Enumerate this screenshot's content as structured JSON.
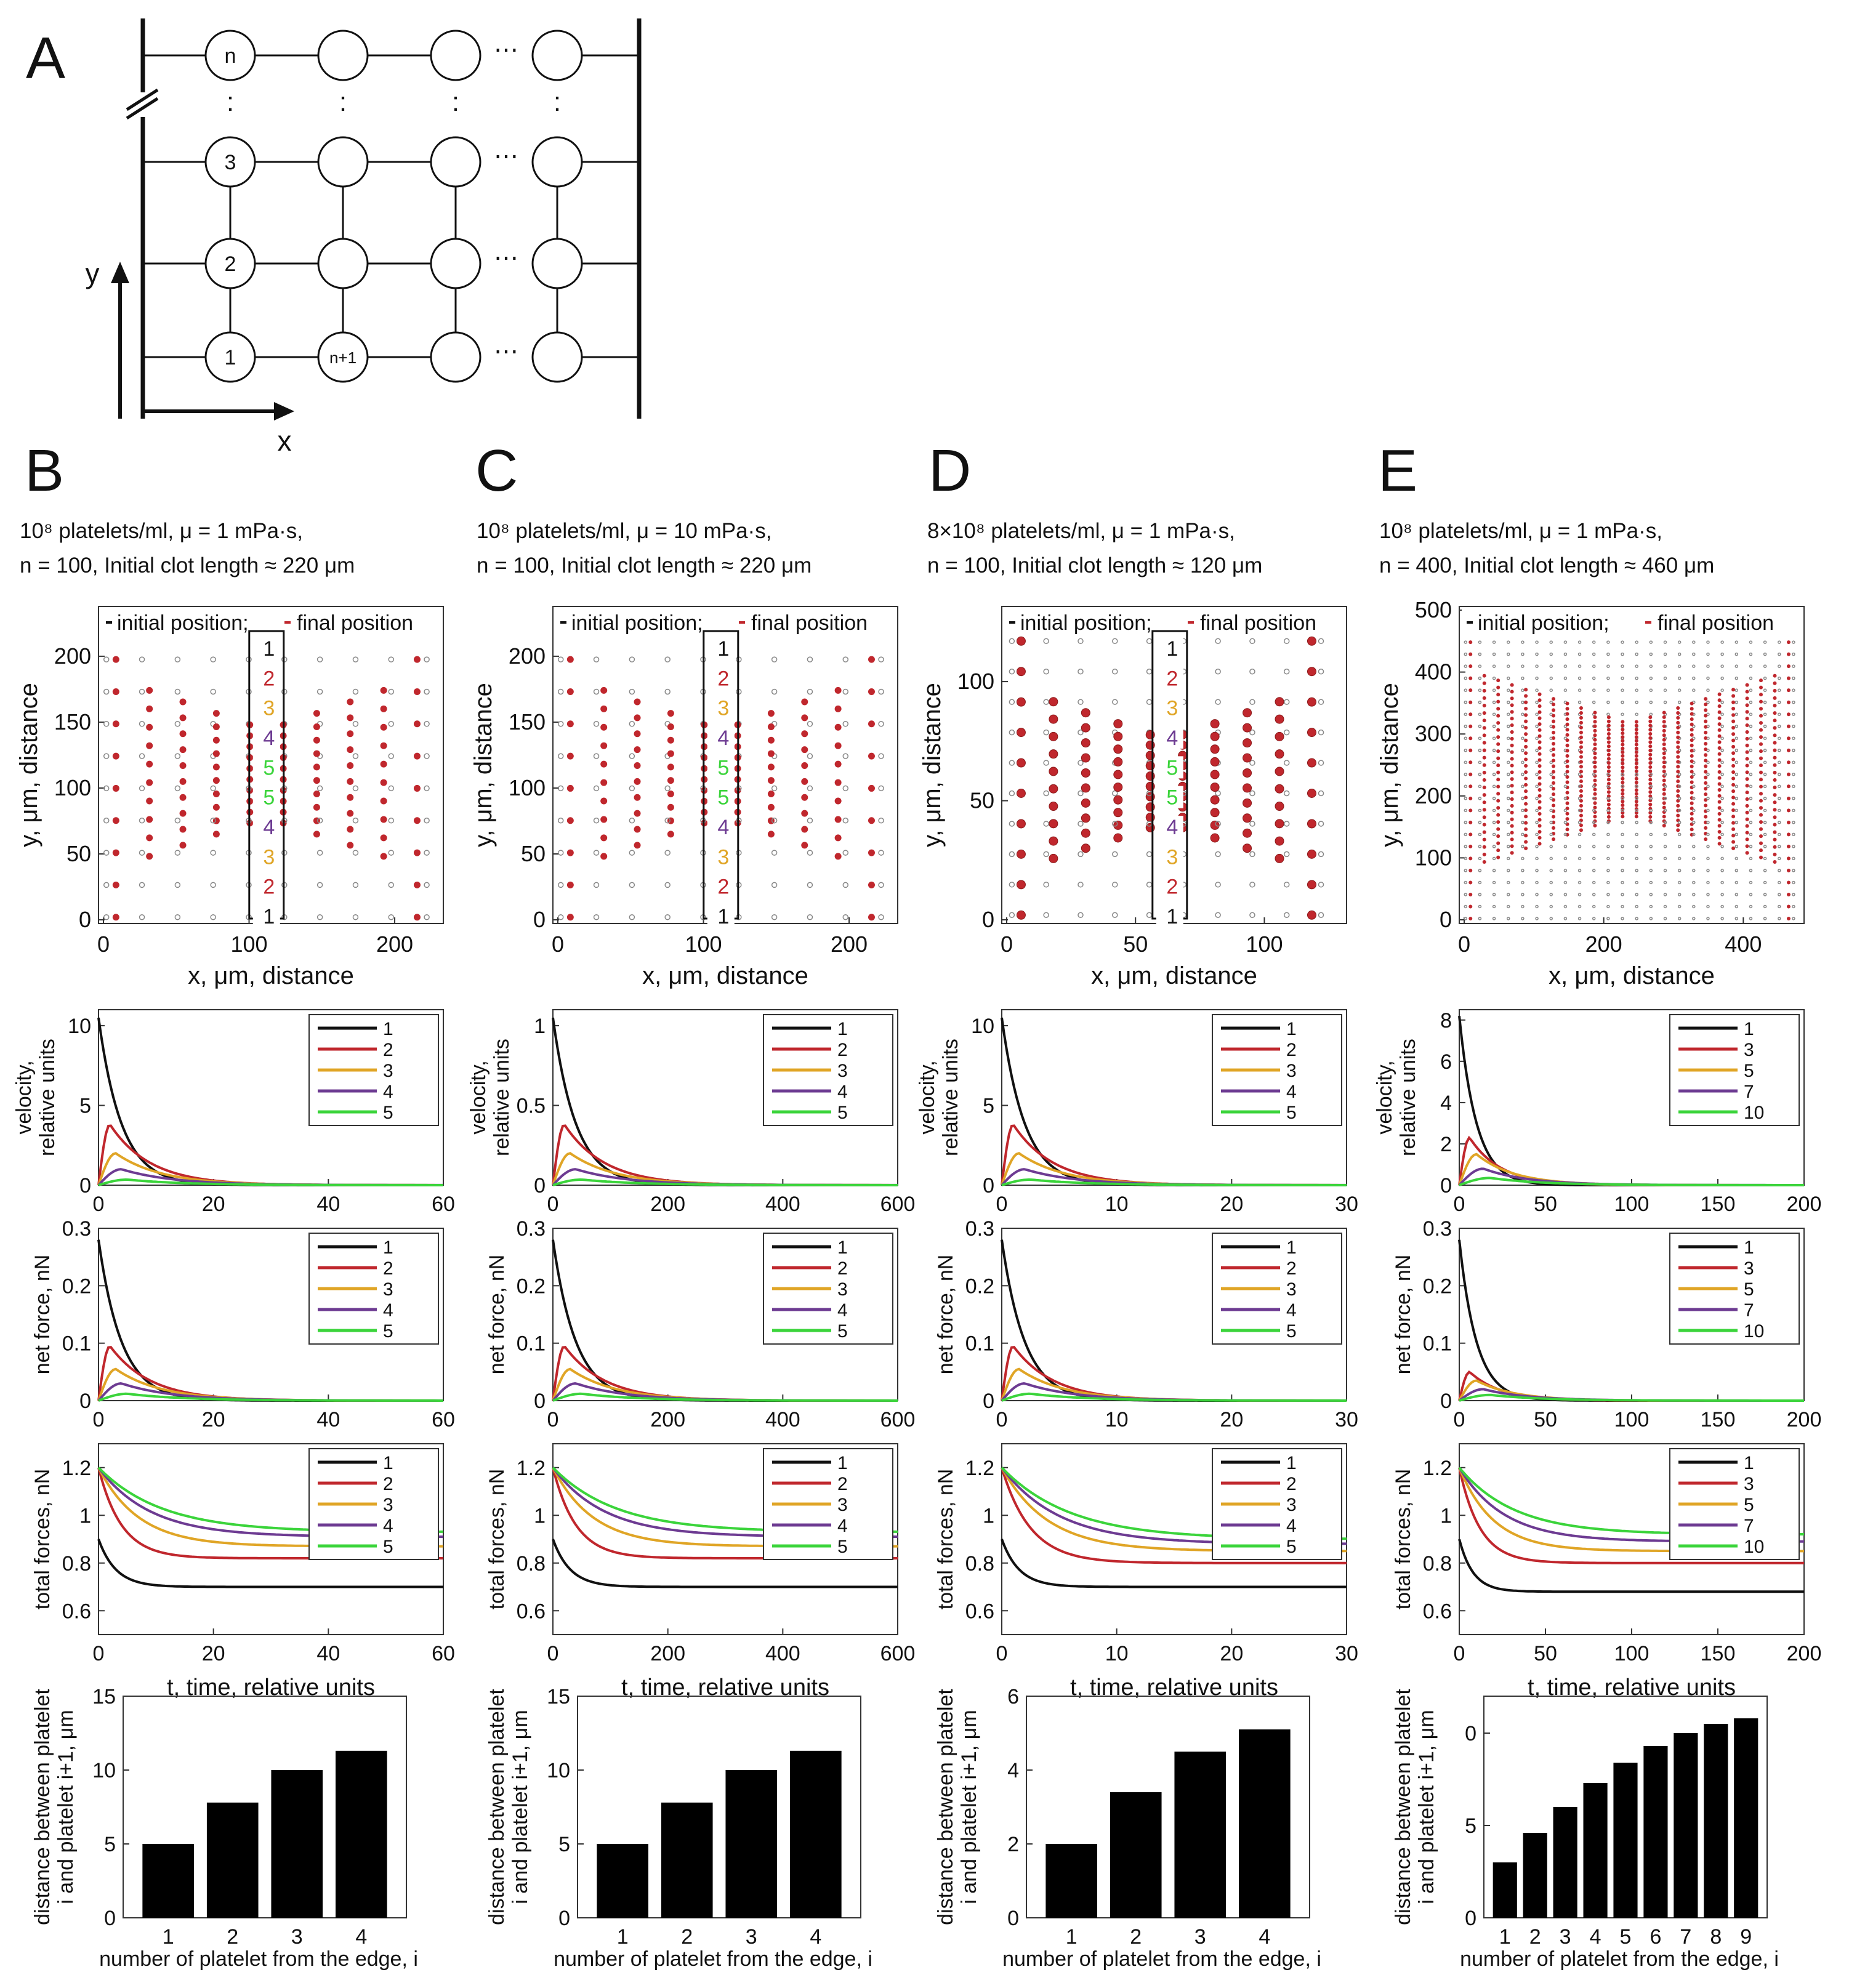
{
  "panel_a": {
    "letter": "A",
    "x_label": "x",
    "y_label": "y",
    "dots": "⋯",
    "col1_labels": [
      "1",
      "2",
      "3",
      "n"
    ],
    "col2_bottom_label": "n+1"
  },
  "colors": {
    "1": "#111111",
    "2": "#c0272d",
    "3": "#e0a526",
    "4": "#6d3b92",
    "5": "#3bd43b",
    "initial": "#888888",
    "final": "#c0272d"
  },
  "panels": [
    {
      "letter": "B",
      "caption_line1": "10⁸ platelets/ml, μ = 1 mPa·s,",
      "caption_line2": "n = 100, Initial clot length ≈ 220 μm",
      "legend_initial": "initial position;",
      "legend_final": "final position",
      "box_labels": [
        "1",
        "2",
        "3",
        "4",
        "5",
        "5",
        "4",
        "3",
        "2",
        "1"
      ],
      "position_xlabel": "x, μm, distance",
      "position_ylabel": "y, μm, distance",
      "x_ticks": [
        "0",
        "100",
        "200"
      ],
      "y_ticks": [
        "0",
        "50",
        "100",
        "150",
        "200"
      ],
      "time_ticks": [
        "0",
        "20",
        "40",
        "60"
      ],
      "velocity_ticks": [
        "0",
        "5",
        "10"
      ],
      "velocity_ylabel": [
        "velocity,",
        "relative units"
      ],
      "netforce_ticks": [
        "0",
        "0.1",
        "0.2",
        "0.3"
      ],
      "netforce_ylabel": "net force, nN",
      "totalforce_ticks": [
        "0.6",
        "0.8",
        "1",
        "1.2"
      ],
      "totalforce_ylabel": "total forces, nN",
      "time_xlabel": "t, time, relative units",
      "legend": [
        "1",
        "2",
        "3",
        "4",
        "5"
      ],
      "bar_ylabel": [
        "distance between platelet",
        "i and platelet i+1, μm"
      ],
      "bar_xlabel": "number of platelet from the edge, i",
      "bar_categories": [
        "1",
        "2",
        "3",
        "4"
      ],
      "bar_ticks": [
        "0",
        "5",
        "10",
        "15"
      ]
    },
    {
      "letter": "C",
      "caption_line1": "10⁸ platelets/ml, μ = 10 mPa·s,",
      "caption_line2": "n = 100, Initial clot length ≈ 220 μm",
      "legend_initial": "initial position;",
      "legend_final": "final position",
      "box_labels": [
        "1",
        "2",
        "3",
        "4",
        "5",
        "5",
        "4",
        "3",
        "2",
        "1"
      ],
      "position_xlabel": "x, μm, distance",
      "position_ylabel": "y, μm, distance",
      "x_ticks": [
        "0",
        "100",
        "200"
      ],
      "y_ticks": [
        "0",
        "50",
        "100",
        "150",
        "200"
      ],
      "time_ticks": [
        "0",
        "200",
        "400",
        "600"
      ],
      "velocity_ticks": [
        "0",
        "0.5",
        "1"
      ],
      "velocity_ylabel": [
        "velocity,",
        "relative units"
      ],
      "netforce_ticks": [
        "0",
        "0.1",
        "0.2",
        "0.3"
      ],
      "netforce_ylabel": "net force, nN",
      "totalforce_ticks": [
        "0.6",
        "0.8",
        "1",
        "1.2"
      ],
      "totalforce_ylabel": "total forces, nN",
      "time_xlabel": "t, time, relative units",
      "legend": [
        "1",
        "2",
        "3",
        "4",
        "5"
      ],
      "bar_ylabel": [
        "distance between platelet",
        "i and platelet i+1, μm"
      ],
      "bar_xlabel": "number of platelet from the edge, i",
      "bar_categories": [
        "1",
        "2",
        "3",
        "4"
      ],
      "bar_ticks": [
        "0",
        "5",
        "10",
        "15"
      ]
    },
    {
      "letter": "D",
      "caption_line1": "8×10⁸ platelets/ml, μ = 1 mPa·s,",
      "caption_line2": "n = 100, Initial clot length ≈ 120 μm",
      "legend_initial": "initial position;",
      "legend_final": "final position",
      "box_labels": [
        "1",
        "2",
        "3",
        "4",
        "5",
        "5",
        "4",
        "3",
        "2",
        "1"
      ],
      "position_xlabel": "x, μm, distance",
      "position_ylabel": "y, μm, distance",
      "x_ticks": [
        "0",
        "50",
        "100"
      ],
      "y_ticks": [
        "0",
        "50",
        "100"
      ],
      "time_ticks": [
        "0",
        "10",
        "20",
        "30"
      ],
      "velocity_ticks": [
        "0",
        "5",
        "10"
      ],
      "velocity_ylabel": [
        "velocity,",
        "relative units"
      ],
      "netforce_ticks": [
        "0",
        "0.1",
        "0.2",
        "0.3"
      ],
      "netforce_ylabel": "net force, nN",
      "totalforce_ticks": [
        "0.6",
        "0.8",
        "1",
        "1.2"
      ],
      "totalforce_ylabel": "total forces, nN",
      "time_xlabel": "t, time, relative units",
      "legend": [
        "1",
        "2",
        "3",
        "4",
        "5"
      ],
      "bar_ylabel": [
        "distance between platelet",
        "i and platelet i+1, μm"
      ],
      "bar_xlabel": "number of platelet from the edge, i",
      "bar_categories": [
        "1",
        "2",
        "3",
        "4"
      ],
      "bar_ticks": [
        "0",
        "2",
        "4",
        "6"
      ]
    },
    {
      "letter": "E",
      "caption_line1": "10⁸ platelets/ml, μ = 1 mPa·s,",
      "caption_line2": "n = 400, Initial clot length ≈ 460 μm",
      "legend_initial": "initial position;",
      "legend_final": "final position",
      "box_labels": [],
      "position_xlabel": "x, μm, distance",
      "position_ylabel": "y, μm, distance",
      "x_ticks": [
        "0",
        "200",
        "400"
      ],
      "y_ticks": [
        "0",
        "100",
        "200",
        "300",
        "400",
        "500"
      ],
      "time_ticks": [
        "0",
        "50",
        "100",
        "150",
        "200"
      ],
      "velocity_ticks": [
        "0",
        "2",
        "4",
        "6",
        "8"
      ],
      "velocity_ylabel": [
        "velocity,",
        "relative units"
      ],
      "netforce_ticks": [
        "0",
        "0.1",
        "0.2",
        "0.3"
      ],
      "netforce_ylabel": "net force, nN",
      "totalforce_ticks": [
        "0.6",
        "0.8",
        "1",
        "1.2"
      ],
      "totalforce_ylabel": "total forces, nN",
      "time_xlabel": "t, time, relative units",
      "legend": [
        "1",
        "3",
        "5",
        "7",
        "10"
      ],
      "bar_ylabel": [
        "distance between platelet",
        "i and platelet i+1, μm"
      ],
      "bar_xlabel": "number of platelet from the edge, i",
      "bar_categories": [
        "1",
        "2",
        "3",
        "4",
        "5",
        "6",
        "7",
        "8",
        "9"
      ],
      "bar_ticks": [
        "0",
        "5",
        "0"
      ]
    }
  ],
  "chart_data": [
    {
      "panel": "B",
      "type": "line",
      "title": "velocity",
      "xlabel": "t, time, relative units",
      "ylabel": "velocity, relative units",
      "xlim": [
        0,
        60
      ],
      "ylim": [
        0,
        11
      ],
      "series": [
        {
          "name": "1",
          "peak": 10.5,
          "peak_t": 0,
          "tau": 4
        },
        {
          "name": "2",
          "peak": 3.8,
          "peak_t": 2,
          "tau": 7
        },
        {
          "name": "3",
          "peak": 2.0,
          "peak_t": 3,
          "tau": 8
        },
        {
          "name": "4",
          "peak": 1.0,
          "peak_t": 4,
          "tau": 9
        },
        {
          "name": "5",
          "peak": 0.35,
          "peak_t": 5,
          "tau": 10
        }
      ]
    },
    {
      "panel": "B",
      "type": "line",
      "title": "net force",
      "xlabel": "t, time, relative units",
      "ylabel": "net force, nN",
      "xlim": [
        0,
        60
      ],
      "ylim": [
        0,
        0.3
      ],
      "series": [
        {
          "name": "1",
          "peak": 0.28,
          "peak_t": 0,
          "tau": 4
        },
        {
          "name": "2",
          "peak": 0.095,
          "peak_t": 2,
          "tau": 7
        },
        {
          "name": "3",
          "peak": 0.055,
          "peak_t": 3,
          "tau": 8
        },
        {
          "name": "4",
          "peak": 0.03,
          "peak_t": 4,
          "tau": 9
        },
        {
          "name": "5",
          "peak": 0.012,
          "peak_t": 5,
          "tau": 10
        }
      ]
    },
    {
      "panel": "B",
      "type": "line",
      "title": "total forces",
      "xlabel": "t, time, relative units",
      "ylabel": "total forces, nN",
      "xlim": [
        0,
        60
      ],
      "ylim": [
        0.5,
        1.3
      ],
      "series": [
        {
          "name": "1",
          "start": 0.9,
          "end": 0.7,
          "tau": 3
        },
        {
          "name": "2",
          "start": 1.2,
          "end": 0.82,
          "tau": 4
        },
        {
          "name": "3",
          "start": 1.2,
          "end": 0.87,
          "tau": 7
        },
        {
          "name": "4",
          "start": 1.2,
          "end": 0.91,
          "tau": 9
        },
        {
          "name": "5",
          "start": 1.2,
          "end": 0.93,
          "tau": 11
        }
      ]
    },
    {
      "panel": "B",
      "type": "bar",
      "title": "distance between platelets",
      "categories": [
        "1",
        "2",
        "3",
        "4"
      ],
      "values": [
        5,
        7.8,
        10,
        11.3
      ],
      "ylim": [
        0,
        15
      ]
    },
    {
      "panel": "C",
      "type": "line",
      "title": "velocity",
      "xlim": [
        0,
        600
      ],
      "ylim": [
        0,
        1.1
      ],
      "series": [
        {
          "name": "1",
          "peak": 1.05,
          "peak_t": 0,
          "tau": 40
        },
        {
          "name": "2",
          "peak": 0.38,
          "peak_t": 20,
          "tau": 70
        },
        {
          "name": "3",
          "peak": 0.2,
          "peak_t": 30,
          "tau": 80
        },
        {
          "name": "4",
          "peak": 0.1,
          "peak_t": 40,
          "tau": 90
        },
        {
          "name": "5",
          "peak": 0.035,
          "peak_t": 50,
          "tau": 100
        }
      ]
    },
    {
      "panel": "C",
      "type": "line",
      "title": "net force",
      "xlim": [
        0,
        600
      ],
      "ylim": [
        0,
        0.3
      ],
      "series": [
        {
          "name": "1",
          "peak": 0.28,
          "peak_t": 0,
          "tau": 40
        },
        {
          "name": "2",
          "peak": 0.095,
          "peak_t": 20,
          "tau": 70
        },
        {
          "name": "3",
          "peak": 0.055,
          "peak_t": 30,
          "tau": 80
        },
        {
          "name": "4",
          "peak": 0.03,
          "peak_t": 40,
          "tau": 90
        },
        {
          "name": "5",
          "peak": 0.012,
          "peak_t": 50,
          "tau": 100
        }
      ]
    },
    {
      "panel": "C",
      "type": "line",
      "title": "total forces",
      "xlim": [
        0,
        600
      ],
      "ylim": [
        0.5,
        1.3
      ],
      "series": [
        {
          "name": "1",
          "start": 0.9,
          "end": 0.7,
          "tau": 30
        },
        {
          "name": "2",
          "start": 1.2,
          "end": 0.82,
          "tau": 40
        },
        {
          "name": "3",
          "start": 1.2,
          "end": 0.87,
          "tau": 70
        },
        {
          "name": "4",
          "start": 1.2,
          "end": 0.91,
          "tau": 90
        },
        {
          "name": "5",
          "start": 1.2,
          "end": 0.93,
          "tau": 110
        }
      ]
    },
    {
      "panel": "C",
      "type": "bar",
      "title": "distance between platelets",
      "categories": [
        "1",
        "2",
        "3",
        "4"
      ],
      "values": [
        5,
        7.8,
        10,
        11.3
      ],
      "ylim": [
        0,
        15
      ]
    },
    {
      "panel": "D",
      "type": "line",
      "title": "velocity",
      "xlim": [
        0,
        30
      ],
      "ylim": [
        0,
        11
      ],
      "series": [
        {
          "name": "1",
          "peak": 10.5,
          "peak_t": 0,
          "tau": 2
        },
        {
          "name": "2",
          "peak": 3.8,
          "peak_t": 1,
          "tau": 3.5
        },
        {
          "name": "3",
          "peak": 2.0,
          "peak_t": 1.5,
          "tau": 4
        },
        {
          "name": "4",
          "peak": 1.0,
          "peak_t": 2,
          "tau": 4.5
        },
        {
          "name": "5",
          "peak": 0.35,
          "peak_t": 2.5,
          "tau": 5
        }
      ]
    },
    {
      "panel": "D",
      "type": "line",
      "title": "net force",
      "xlim": [
        0,
        30
      ],
      "ylim": [
        0,
        0.3
      ],
      "series": [
        {
          "name": "1",
          "peak": 0.28,
          "peak_t": 0,
          "tau": 2
        },
        {
          "name": "2",
          "peak": 0.095,
          "peak_t": 1,
          "tau": 3.5
        },
        {
          "name": "3",
          "peak": 0.055,
          "peak_t": 1.5,
          "tau": 4
        },
        {
          "name": "4",
          "peak": 0.03,
          "peak_t": 2,
          "tau": 4.5
        },
        {
          "name": "5",
          "peak": 0.012,
          "peak_t": 2.5,
          "tau": 5
        }
      ]
    },
    {
      "panel": "D",
      "type": "line",
      "title": "total forces",
      "xlim": [
        0,
        30
      ],
      "ylim": [
        0.5,
        1.3
      ],
      "series": [
        {
          "name": "1",
          "start": 0.9,
          "end": 0.7,
          "tau": 1.5
        },
        {
          "name": "2",
          "start": 1.2,
          "end": 0.8,
          "tau": 2.5
        },
        {
          "name": "3",
          "start": 1.2,
          "end": 0.85,
          "tau": 4
        },
        {
          "name": "4",
          "start": 1.2,
          "end": 0.88,
          "tau": 5
        },
        {
          "name": "5",
          "start": 1.2,
          "end": 0.9,
          "tau": 6
        }
      ]
    },
    {
      "panel": "D",
      "type": "bar",
      "title": "distance between platelets",
      "categories": [
        "1",
        "2",
        "3",
        "4"
      ],
      "values": [
        2,
        3.4,
        4.5,
        5.1
      ],
      "ylim": [
        0,
        6
      ]
    },
    {
      "panel": "E",
      "type": "line",
      "title": "velocity",
      "xlim": [
        0,
        200
      ],
      "ylim": [
        0,
        8.5
      ],
      "series": [
        {
          "name": "1",
          "peak": 8.2,
          "peak_t": 0,
          "tau": 10
        },
        {
          "name": "3",
          "peak": 2.3,
          "peak_t": 6,
          "tau": 18
        },
        {
          "name": "5",
          "peak": 1.5,
          "peak_t": 10,
          "tau": 22
        },
        {
          "name": "7",
          "peak": 0.8,
          "peak_t": 14,
          "tau": 26
        },
        {
          "name": "10",
          "peak": 0.35,
          "peak_t": 18,
          "tau": 30
        }
      ]
    },
    {
      "panel": "E",
      "type": "line",
      "title": "net force",
      "xlim": [
        0,
        200
      ],
      "ylim": [
        0,
        0.3
      ],
      "series": [
        {
          "name": "1",
          "peak": 0.28,
          "peak_t": 0,
          "tau": 10
        },
        {
          "name": "3",
          "peak": 0.05,
          "peak_t": 6,
          "tau": 18
        },
        {
          "name": "5",
          "peak": 0.035,
          "peak_t": 10,
          "tau": 22
        },
        {
          "name": "7",
          "peak": 0.02,
          "peak_t": 14,
          "tau": 26
        },
        {
          "name": "10",
          "peak": 0.01,
          "peak_t": 18,
          "tau": 30
        }
      ]
    },
    {
      "panel": "E",
      "type": "line",
      "title": "total forces",
      "xlim": [
        0,
        200
      ],
      "ylim": [
        0.5,
        1.3
      ],
      "series": [
        {
          "name": "1",
          "start": 0.9,
          "end": 0.68,
          "tau": 8
        },
        {
          "name": "3",
          "start": 1.2,
          "end": 0.8,
          "tau": 12
        },
        {
          "name": "5",
          "start": 1.2,
          "end": 0.85,
          "tau": 20
        },
        {
          "name": "7",
          "start": 1.2,
          "end": 0.89,
          "tau": 26
        },
        {
          "name": "10",
          "start": 1.2,
          "end": 0.92,
          "tau": 32
        }
      ]
    },
    {
      "panel": "E",
      "type": "bar",
      "title": "distance between platelets",
      "categories": [
        "1",
        "2",
        "3",
        "4",
        "5",
        "6",
        "7",
        "8",
        "9"
      ],
      "values": [
        3,
        4.6,
        6,
        7.3,
        8.4,
        9.3,
        10,
        10.5,
        10.8
      ],
      "ylim": [
        0,
        12
      ]
    }
  ]
}
